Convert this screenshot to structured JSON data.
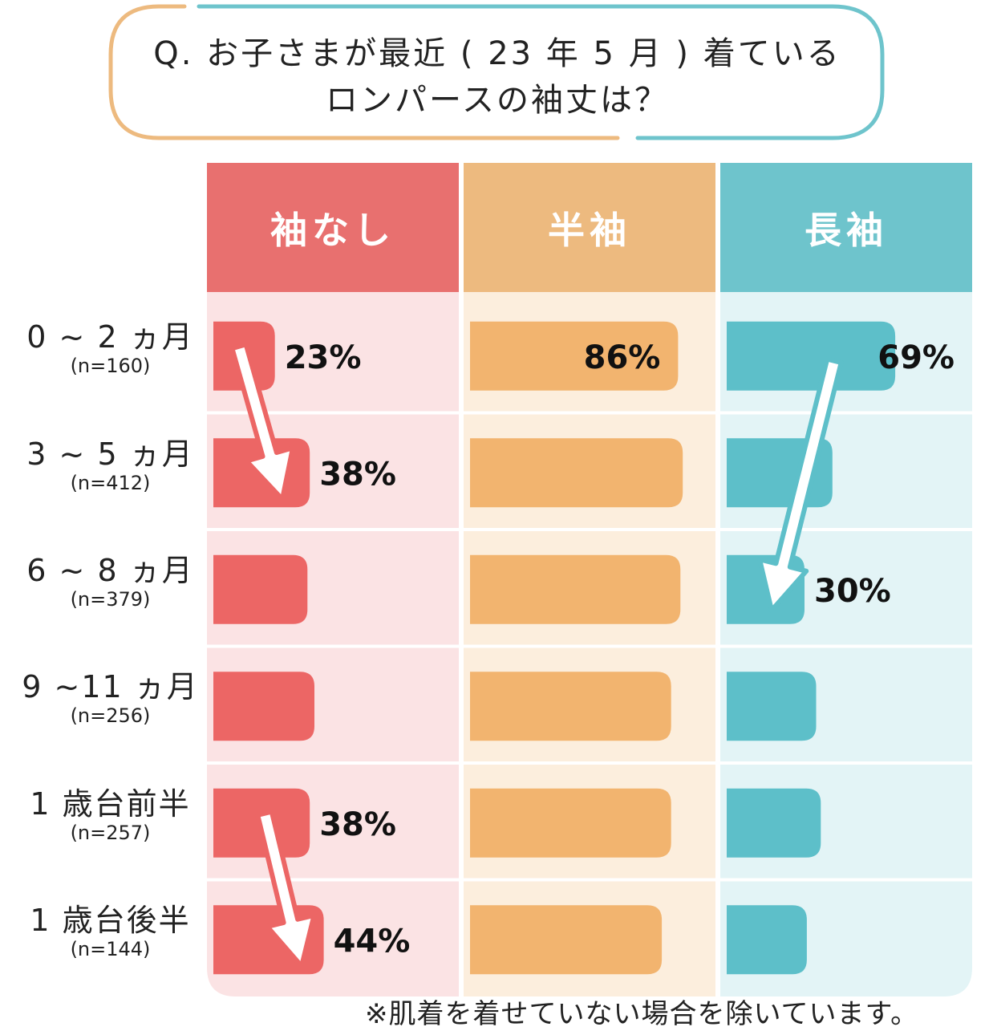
{
  "question": {
    "line1": "Q. お子さまが最近 ( 23 年 5 月 ) 着ている",
    "line2": "ロンパースの袖丈は？"
  },
  "columns": [
    {
      "label": "袖なし",
      "color": "#E8706F",
      "bg": "#FBE3E4",
      "bar": "#EC6665"
    },
    {
      "label": "半袖",
      "color": "#EDBA7F",
      "bg": "#FCEEDD",
      "bar": "#F2B46F"
    },
    {
      "label": "長袖",
      "color": "#6EC4CC",
      "bg": "#E3F4F6",
      "bar": "#5DBFC9"
    }
  ],
  "rows": [
    {
      "label": "0 ~ 2 ヵ月",
      "n": "(n=160)"
    },
    {
      "label": "3 ~ 5 ヵ月",
      "n": "(n=412)"
    },
    {
      "label": "6 ~ 8 ヵ月",
      "n": "(n=379)"
    },
    {
      "label": "9 ~11 ヵ月",
      "n": "(n=256)"
    },
    {
      "label": "1 歳台前半",
      "n": "(n=257)"
    },
    {
      "label": "1 歳台後半",
      "n": "(n=144)"
    }
  ],
  "chart_data": {
    "type": "bar",
    "categories": [
      "0 ~ 2 ヵ月",
      "3 ~ 5 ヵ月",
      "6 ~ 8 ヵ月",
      "9 ~11 ヵ月",
      "1 歳台前半",
      "1 歳台後半"
    ],
    "series": [
      {
        "name": "袖なし",
        "values": [
          23,
          38,
          37,
          40,
          38,
          44
        ],
        "labels": [
          "23%",
          "38%",
          "",
          "",
          "38%",
          "44%"
        ]
      },
      {
        "name": "半袖",
        "values": [
          86,
          88,
          87,
          83,
          83,
          79
        ],
        "labels": [
          "86%",
          "",
          "",
          "",
          "",
          ""
        ]
      },
      {
        "name": "長袖",
        "values": [
          69,
          42,
          30,
          35,
          37,
          31
        ],
        "labels": [
          "69%",
          "",
          "30%",
          "",
          "",
          ""
        ]
      }
    ],
    "ylim": [
      0,
      100
    ]
  },
  "footnote": "※肌着を着せていない場合を除いています。"
}
